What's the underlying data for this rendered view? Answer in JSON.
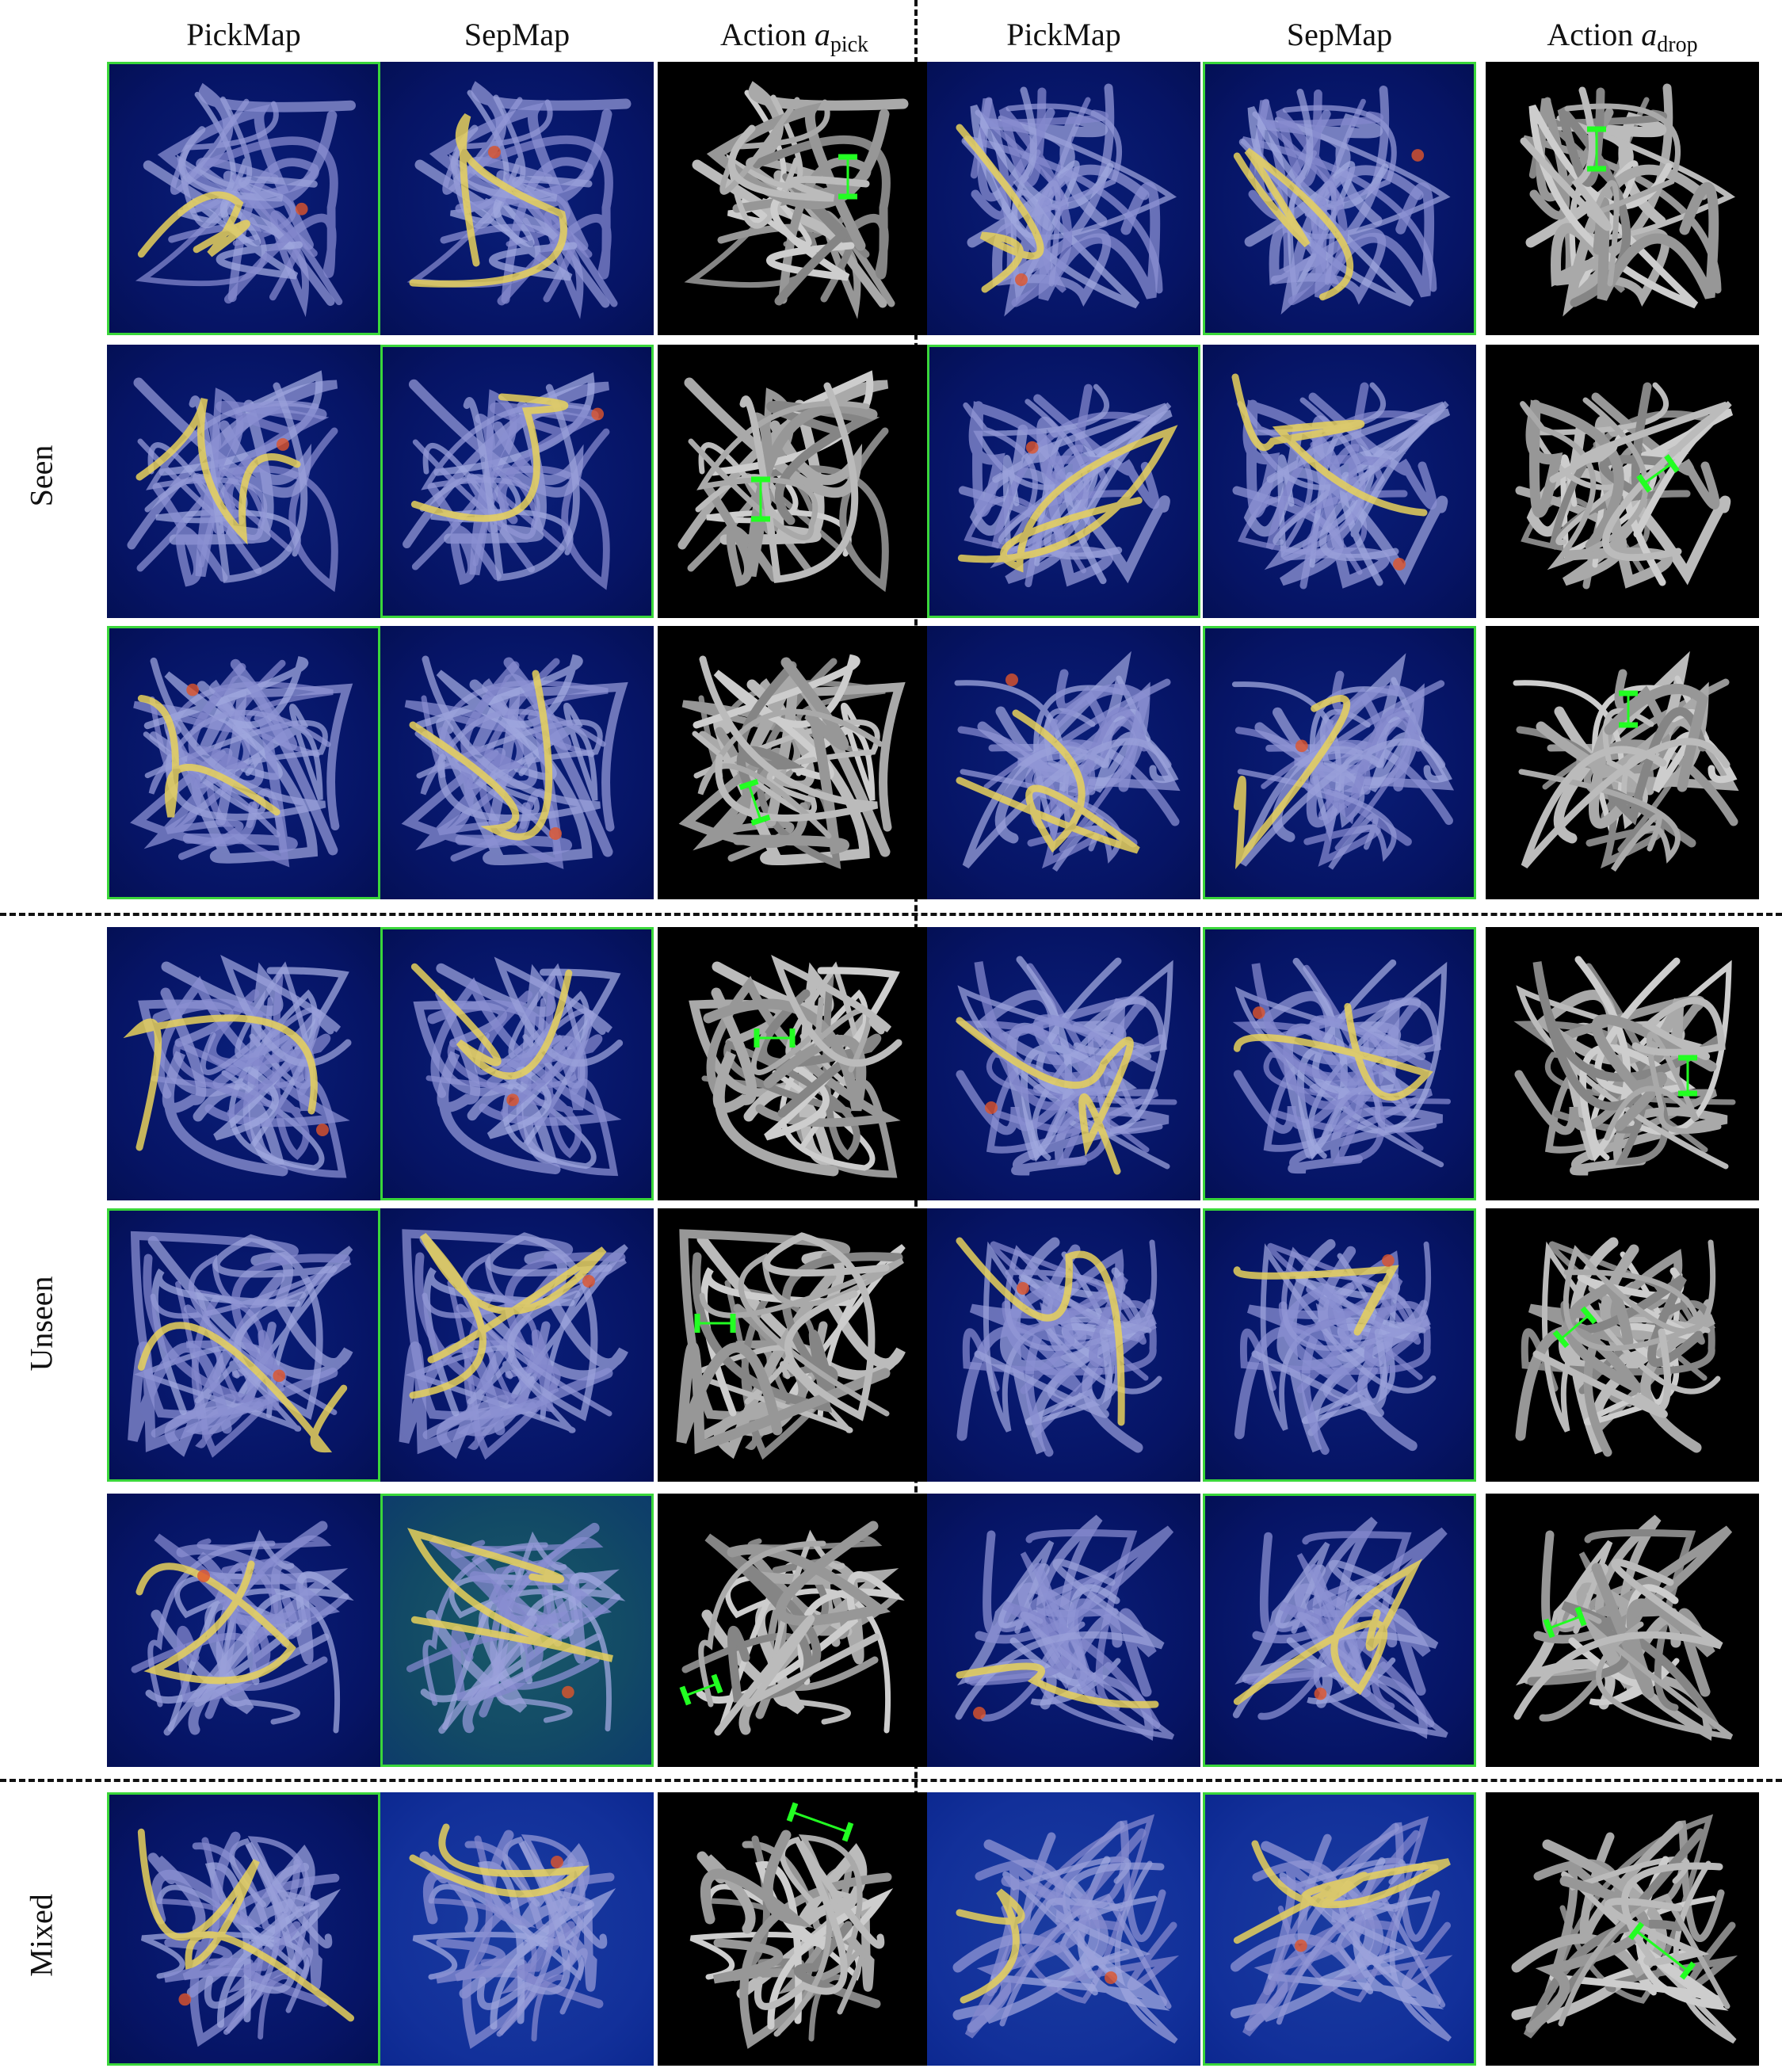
{
  "headers": {
    "pickmap": "PickMap",
    "sepmap": "SepMap",
    "action_word": "Action",
    "a": "a",
    "pick_sub": "pick",
    "drop_sub": "drop"
  },
  "row_labels": {
    "seen": "Seen",
    "unseen": "Unseen",
    "mixed": "Mixed"
  },
  "colors": {
    "selection_border": "#3ad63a",
    "action_marker": "#22ff22",
    "heatmap_background": "#061465",
    "action_background": "#000000"
  }
}
